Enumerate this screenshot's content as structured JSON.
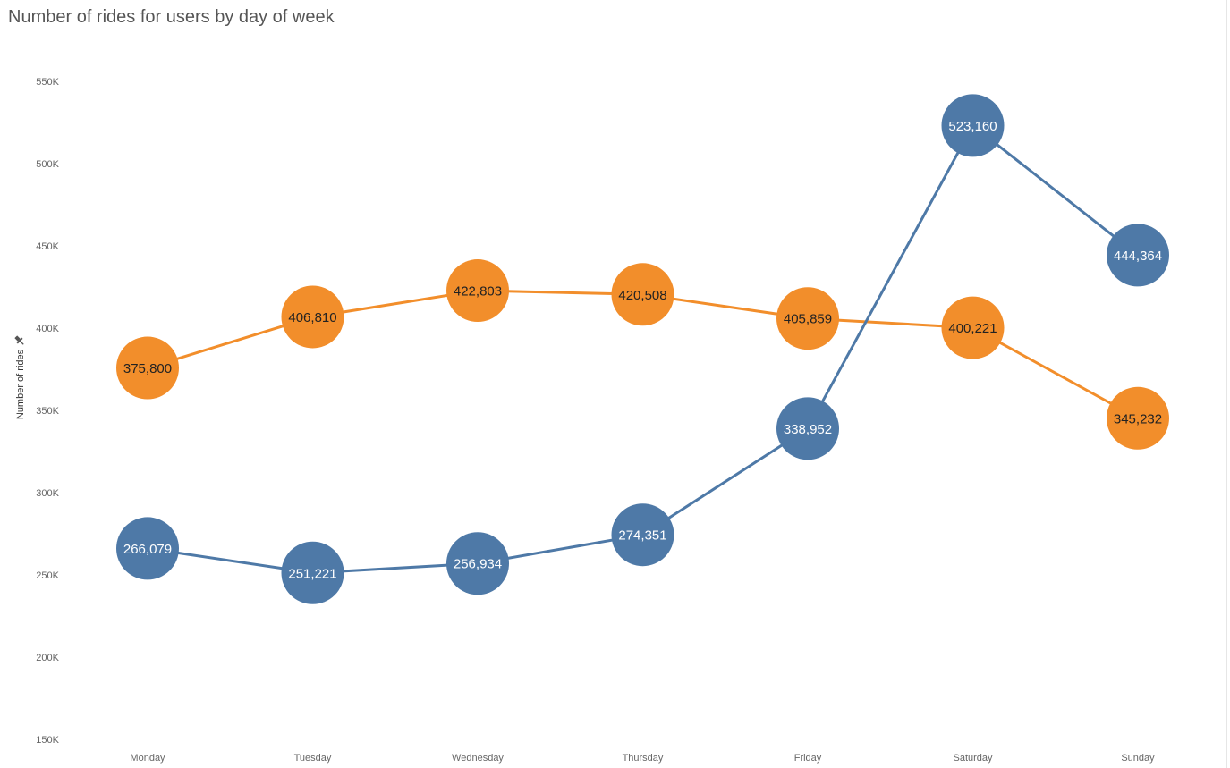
{
  "chart_data": {
    "type": "line",
    "title": "Number of rides for users by day of week",
    "ylabel": "Number of rides",
    "xlabel": "",
    "categories": [
      "Monday",
      "Tuesday",
      "Wednesday",
      "Thursday",
      "Friday",
      "Saturday",
      "Sunday"
    ],
    "series": [
      {
        "values": [
          375800,
          406810,
          422803,
          420508,
          405859,
          400221,
          345232
        ],
        "labels": [
          "375,800",
          "406,810",
          "422,803",
          "420,508",
          "405,859",
          "400,221",
          "345,232"
        ],
        "color": "#F28E2B",
        "label_color": "#222222"
      },
      {
        "values": [
          266079,
          251221,
          256934,
          274351,
          338952,
          523160,
          444364
        ],
        "labels": [
          "266,079",
          "251,221",
          "256,934",
          "274,351",
          "338,952",
          "523,160",
          "444,364"
        ],
        "color": "#4E79A7",
        "label_color": "#ffffff"
      }
    ],
    "y_ticks": [
      {
        "value": 550000,
        "label": "550K"
      },
      {
        "value": 500000,
        "label": "500K"
      },
      {
        "value": 450000,
        "label": "450K"
      },
      {
        "value": 400000,
        "label": "400K"
      },
      {
        "value": 350000,
        "label": "350K"
      },
      {
        "value": 300000,
        "label": "300K"
      },
      {
        "value": 250000,
        "label": "250K"
      },
      {
        "value": 200000,
        "label": "200K"
      },
      {
        "value": 150000,
        "label": "150K"
      }
    ],
    "ylim": [
      150000,
      550000
    ],
    "grid": false,
    "legend": "none",
    "pin_icon": "pin-icon"
  }
}
